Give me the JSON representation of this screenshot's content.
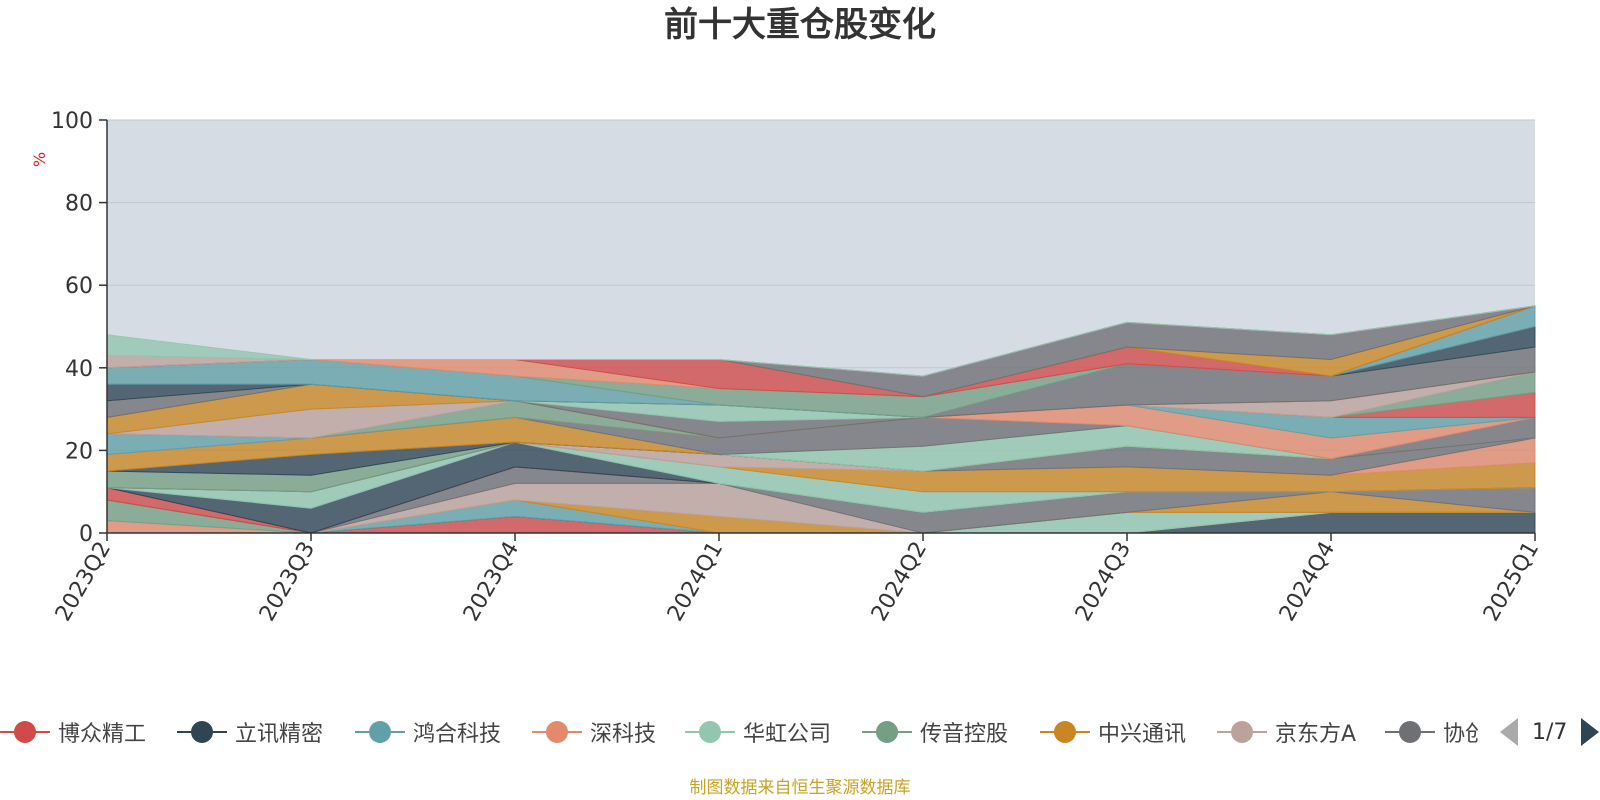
{
  "title": "前十大重仓股变化",
  "unit_label": "%",
  "source_note": "制图数据来自恒生聚源数据库",
  "colors": {
    "title": "#333333",
    "unit": "#e02020",
    "source": "#c9a227",
    "plot_bg": "#d6dce4",
    "grid": "#bfc7d1",
    "axis": "#333333"
  },
  "legend": {
    "pager": "1/7",
    "visible_items": [
      "博众精工",
      "立讯精密",
      "鸿合科技",
      "深科技",
      "华虹公司",
      "传音控股",
      "中兴通讯",
      "京东方A",
      "协创数据"
    ]
  },
  "chart_data": {
    "type": "area",
    "stacked": true,
    "title": "前十大重仓股变化",
    "ylabel": "%",
    "ylim": [
      0,
      100
    ],
    "yticks": [
      0,
      20,
      40,
      60,
      80,
      100
    ],
    "categories": [
      "2023Q2",
      "2023Q3",
      "2023Q4",
      "2024Q1",
      "2024Q2",
      "2024Q3",
      "2024Q4",
      "2025Q1"
    ],
    "legend_position": "bottom",
    "series": [
      {
        "name": "博众精工",
        "color": "#d14a4a",
        "values": [
          0,
          0,
          4,
          0,
          0,
          0,
          0,
          0
        ]
      },
      {
        "name": "立讯精密",
        "color": "#2f4554",
        "values": [
          0,
          0,
          0,
          0,
          0,
          0,
          5,
          5
        ]
      },
      {
        "name": "鸿合科技",
        "color": "#61a0a8",
        "values": [
          0,
          0,
          4,
          0,
          0,
          0,
          0,
          0
        ]
      },
      {
        "name": "深科技",
        "color": "#e38a6d",
        "values": [
          3,
          0,
          0,
          0,
          0,
          0,
          0,
          0
        ]
      },
      {
        "name": "华虹公司",
        "color": "#91c7ae",
        "values": [
          0,
          0,
          0,
          0,
          0,
          5,
          0,
          0
        ]
      },
      {
        "name": "传音控股",
        "color": "#749f83",
        "values": [
          5,
          0,
          0,
          0,
          0,
          0,
          0,
          0
        ]
      },
      {
        "name": "中兴通讯",
        "color": "#ca8622",
        "values": [
          0,
          0,
          0,
          4,
          0,
          0,
          5,
          0
        ]
      },
      {
        "name": "京东方A",
        "color": "#bda29a",
        "values": [
          0,
          0,
          4,
          8,
          0,
          0,
          0,
          0
        ]
      },
      {
        "name": "协创数据",
        "color": "#6e7074",
        "values": [
          0,
          0,
          4,
          0,
          5,
          5,
          0,
          6
        ]
      },
      {
        "name": "",
        "color": "#d14a4a",
        "values": [
          3,
          0,
          0,
          0,
          0,
          0,
          0,
          0
        ]
      },
      {
        "name": "",
        "color": "#2f4554",
        "values": [
          0,
          6,
          6,
          0,
          0,
          0,
          0,
          0
        ]
      },
      {
        "name": "",
        "color": "#61a0a8",
        "values": [
          0,
          0,
          0,
          0,
          0,
          0,
          0,
          0
        ]
      },
      {
        "name": "",
        "color": "#91c7ae",
        "values": [
          0,
          4,
          0,
          4,
          5,
          0,
          0,
          0
        ]
      },
      {
        "name": "",
        "color": "#ca8622",
        "values": [
          0,
          0,
          0,
          0,
          5,
          6,
          4,
          6
        ]
      },
      {
        "name": "",
        "color": "#e38a6d",
        "values": [
          0,
          0,
          0,
          0,
          0,
          0,
          0,
          6
        ]
      },
      {
        "name": "",
        "color": "#bda29a",
        "values": [
          0,
          0,
          0,
          3,
          0,
          0,
          0,
          0
        ]
      },
      {
        "name": "",
        "color": "#6e7074",
        "values": [
          0,
          0,
          0,
          0,
          0,
          5,
          4,
          0
        ]
      },
      {
        "name": "",
        "color": "#749f83",
        "values": [
          4,
          4,
          0,
          0,
          0,
          0,
          0,
          0
        ]
      },
      {
        "name": "",
        "color": "#2f4554",
        "values": [
          0,
          5,
          0,
          0,
          0,
          0,
          0,
          0
        ]
      },
      {
        "name": "",
        "color": "#ca8622",
        "values": [
          4,
          4,
          6,
          0,
          0,
          0,
          0,
          0
        ]
      },
      {
        "name": "",
        "color": "#91c7ae",
        "values": [
          0,
          0,
          0,
          0,
          6,
          5,
          0,
          0
        ]
      },
      {
        "name": "",
        "color": "#6e7074",
        "values": [
          0,
          0,
          0,
          4,
          7,
          0,
          0,
          5
        ]
      },
      {
        "name": "",
        "color": "#e38a6d",
        "values": [
          0,
          0,
          0,
          0,
          0,
          5,
          5,
          0
        ]
      },
      {
        "name": "",
        "color": "#61a0a8",
        "values": [
          5,
          0,
          0,
          0,
          0,
          0,
          5,
          0
        ]
      },
      {
        "name": "",
        "color": "#d14a4a",
        "values": [
          0,
          0,
          0,
          0,
          0,
          0,
          0,
          6
        ]
      },
      {
        "name": "",
        "color": "#749f83",
        "values": [
          0,
          0,
          4,
          0,
          0,
          0,
          0,
          5
        ]
      },
      {
        "name": "",
        "color": "#bda29a",
        "values": [
          0,
          7,
          0,
          0,
          0,
          0,
          4,
          0
        ]
      },
      {
        "name": "",
        "color": "#ca8622",
        "values": [
          4,
          6,
          0,
          0,
          0,
          0,
          0,
          0
        ]
      },
      {
        "name": "",
        "color": "#6e7074",
        "values": [
          4,
          0,
          0,
          4,
          0,
          10,
          6,
          6
        ]
      },
      {
        "name": "",
        "color": "#91c7ae",
        "values": [
          0,
          0,
          0,
          4,
          0,
          0,
          0,
          0
        ]
      },
      {
        "name": "",
        "color": "#2f4554",
        "values": [
          4,
          0,
          0,
          0,
          0,
          0,
          0,
          5
        ]
      },
      {
        "name": "",
        "color": "#61a0a8",
        "values": [
          4,
          6,
          6,
          0,
          0,
          0,
          0,
          5
        ]
      },
      {
        "name": "",
        "color": "#749f83",
        "values": [
          0,
          0,
          0,
          4,
          5,
          0,
          0,
          0
        ]
      },
      {
        "name": "",
        "color": "#e38a6d",
        "values": [
          0,
          0,
          4,
          0,
          0,
          0,
          0,
          0
        ]
      },
      {
        "name": "",
        "color": "#d14a4a",
        "values": [
          0,
          0,
          0,
          7,
          0,
          4,
          0,
          0
        ]
      },
      {
        "name": "",
        "color": "#ca8622",
        "values": [
          0,
          0,
          0,
          0,
          0,
          0,
          4,
          0
        ]
      },
      {
        "name": "",
        "color": "#6e7074",
        "values": [
          0,
          0,
          0,
          0,
          5,
          6,
          6,
          0
        ]
      },
      {
        "name": "",
        "color": "#bda29a",
        "values": [
          3,
          0,
          0,
          0,
          0,
          0,
          0,
          0
        ]
      },
      {
        "name": "",
        "color": "#91c7ae",
        "values": [
          5,
          0,
          0,
          0,
          0,
          0,
          0,
          0
        ]
      }
    ]
  }
}
